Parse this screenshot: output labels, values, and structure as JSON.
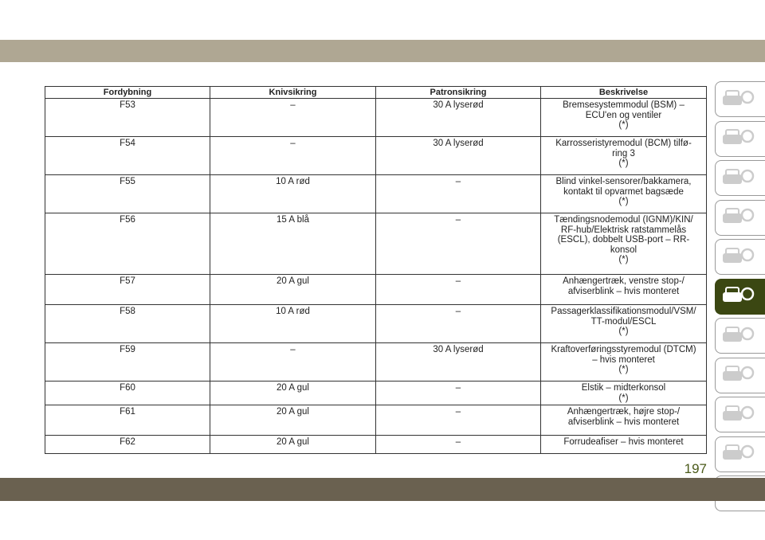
{
  "table": {
    "headers": [
      "Fordybning",
      "Knivsikring",
      "Patronsikring",
      "Beskrivelse"
    ],
    "rows": [
      [
        "F53",
        "–",
        "30 A lyserød",
        "Bremsesystemmodul (BSM) –\nECU'en og ventiler\n(*)"
      ],
      [
        "F54",
        "–",
        "30 A lyserød",
        "Karrosseristyremodul (BCM) tilfø-\nring 3\n(*)"
      ],
      [
        "F55",
        "10 A rød",
        "–",
        "Blind vinkel-sensorer/bakkamera,\nkontakt til opvarmet bagsæde\n(*)"
      ],
      [
        "F56",
        "15 A blå",
        "–",
        "Tændingsnodemodul (IGNM)/KIN/\nRF-hub/Elektrisk ratstammelås\n(ESCL), dobbelt USB-port – RR-\nkonsol\n(*)"
      ],
      [
        "F57",
        "20 A gul",
        "–",
        "Anhængertræk, venstre stop-/\nafviserblink – hvis monteret"
      ],
      [
        "F58",
        "10 A rød",
        "–",
        "Passagerklassifikationsmodul/VSM/\nTT-modul/ESCL\n(*)"
      ],
      [
        "F59",
        "–",
        "30 A lyserød",
        "Kraftoverføringsstyremodul (DTCM)\n– hvis monteret\n(*)"
      ],
      [
        "F60",
        "20 A gul",
        "–",
        "Elstik – midterkonsol\n(*)"
      ],
      [
        "F61",
        "20 A gul",
        "–",
        "Anhængertræk, højre stop-/\nafviserblink – hvis monteret"
      ],
      [
        "F62",
        "20 A gul",
        "–",
        "Forrudeafiser – hvis monteret"
      ]
    ]
  },
  "page_number": "197",
  "sidebar": {
    "active_index": 5,
    "tabs": [
      {
        "icon": "car-search-icon"
      },
      {
        "icon": "car-info-icon"
      },
      {
        "icon": "warning-light-message-icon"
      },
      {
        "icon": "airbag-seat-icon"
      },
      {
        "icon": "key-steering-wheel-icon"
      },
      {
        "icon": "car-breakdown-warning-icon"
      },
      {
        "icon": "car-service-wrench-icon"
      },
      {
        "icon": "specifications-gear-icon"
      },
      {
        "icon": "multimedia-icon"
      },
      {
        "icon": "search-icon"
      },
      {
        "icon": "index-icon"
      }
    ]
  },
  "colors": {
    "top_band": "#afa793",
    "bottom_band": "#6a6150",
    "active_tab": "#3b4712",
    "page_number": "#4b5a1a"
  }
}
